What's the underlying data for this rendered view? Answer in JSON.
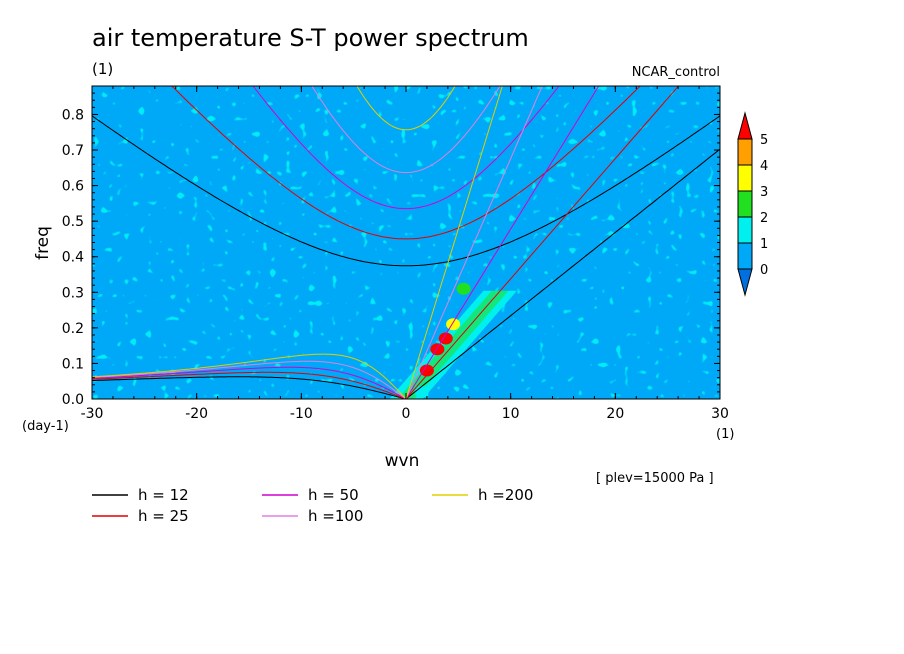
{
  "chart_data": {
    "type": "heatmap",
    "title": "air temperature S-T power spectrum",
    "subtitle_left": "(1)",
    "subtitle_right": "NCAR_control",
    "xlabel": "wvn",
    "ylabel": "freq",
    "x_unit": "(1)",
    "y_unit": "(day-1)",
    "xlim": [
      -30,
      30
    ],
    "ylim": [
      0,
      0.88
    ],
    "x_ticks": [
      -30,
      -20,
      -10,
      0,
      10,
      20,
      30
    ],
    "x_tick_labels": [
      "-30",
      "-20",
      "-10",
      "0",
      "10",
      "20",
      "30"
    ],
    "y_ticks": [
      0.0,
      0.1,
      0.2,
      0.3,
      0.4,
      0.5,
      0.6,
      0.7,
      0.8
    ],
    "y_tick_labels": [
      "0.0",
      "0.1",
      "0.2",
      "0.3",
      "0.4",
      "0.5",
      "0.6",
      "0.7",
      "0.8"
    ],
    "annotation": "[ plev=15000 Pa ]",
    "colorbar": {
      "levels": [
        "0",
        "1",
        "2",
        "3",
        "4",
        "5"
      ],
      "colors": [
        "#0070e0",
        "#00a8f8",
        "#00f0f0",
        "#20e020",
        "#ffff00",
        "#ffa000",
        "#ff0000"
      ]
    },
    "hotspots": [
      {
        "wvn": 1.5,
        "freq": 0.02,
        "level": 1
      },
      {
        "wvn": 2.0,
        "freq": 0.08,
        "level": 5
      },
      {
        "wvn": 3.0,
        "freq": 0.14,
        "level": 5
      },
      {
        "wvn": 3.8,
        "freq": 0.17,
        "level": 5
      },
      {
        "wvn": 4.5,
        "freq": 0.21,
        "level": 3
      },
      {
        "wvn": 5.5,
        "freq": 0.31,
        "level": 2
      }
    ],
    "series": [
      {
        "name": "h = 12",
        "h": 12,
        "color": "#000000"
      },
      {
        "name": "h = 25",
        "h": 25,
        "color": "#e00000"
      },
      {
        "name": "h = 50",
        "h": 50,
        "color": "#d000d0"
      },
      {
        "name": "h =100",
        "h": 100,
        "color": "#e080e0"
      },
      {
        "name": "h =200",
        "h": 200,
        "color": "#e0d000"
      }
    ]
  }
}
